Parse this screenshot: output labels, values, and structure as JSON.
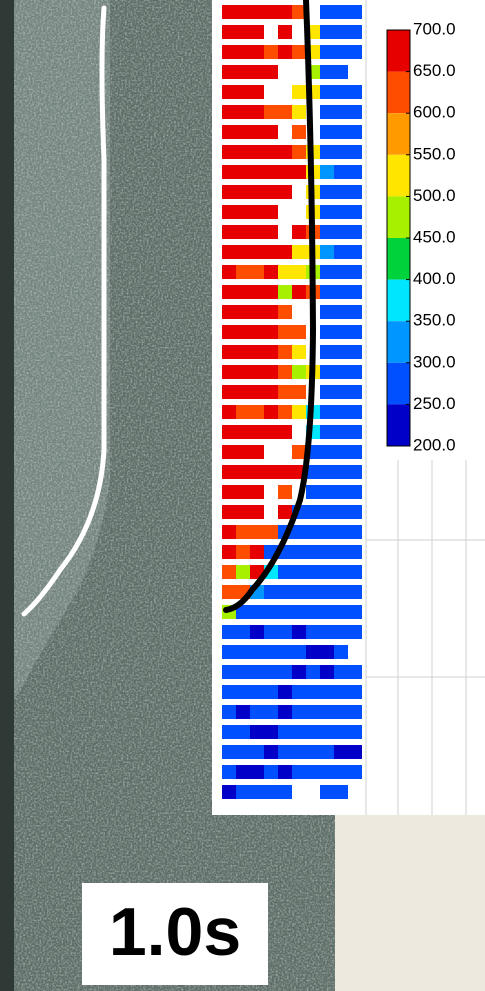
{
  "label": "1.0s",
  "colorbar": {
    "ticks": [
      {
        "value": 700,
        "label": "700.0"
      },
      {
        "value": 650,
        "label": "650.0"
      },
      {
        "value": 600,
        "label": "600.0"
      },
      {
        "value": 550,
        "label": "550.0"
      },
      {
        "value": 500,
        "label": "500.0"
      },
      {
        "value": 450,
        "label": "450.0"
      },
      {
        "value": 400,
        "label": "400.0"
      },
      {
        "value": 350,
        "label": "350.0"
      },
      {
        "value": 300,
        "label": "300.0"
      },
      {
        "value": 250,
        "label": "250.0"
      },
      {
        "value": 200,
        "label": "200.0"
      }
    ],
    "colors": [
      "#e60000",
      "#ff4d00",
      "#ff9a00",
      "#ffe600",
      "#a6f000",
      "#00d23c",
      "#00e6ff",
      "#0096ff",
      "#0050ff",
      "#0000c8"
    ]
  },
  "heatmap": {
    "rows": [
      [
        680,
        680,
        680,
        680,
        680,
        620,
        null,
        280,
        280,
        280
      ],
      [
        680,
        680,
        680,
        null,
        680,
        null,
        520,
        280,
        280,
        280
      ],
      [
        680,
        680,
        680,
        620,
        680,
        620,
        520,
        280,
        280,
        280
      ],
      [
        680,
        680,
        680,
        680,
        null,
        null,
        470,
        280,
        280,
        null
      ],
      [
        680,
        680,
        680,
        null,
        null,
        520,
        520,
        280,
        280,
        280
      ],
      [
        680,
        680,
        680,
        620,
        620,
        520,
        null,
        280,
        280,
        280
      ],
      [
        680,
        680,
        680,
        680,
        null,
        620,
        null,
        280,
        280,
        280
      ],
      [
        680,
        680,
        680,
        680,
        680,
        620,
        520,
        280,
        280,
        280
      ],
      [
        680,
        680,
        680,
        680,
        680,
        680,
        520,
        330,
        280,
        280
      ],
      [
        680,
        680,
        680,
        680,
        680,
        null,
        520,
        280,
        280,
        280
      ],
      [
        680,
        680,
        680,
        680,
        null,
        null,
        520,
        280,
        280,
        280
      ],
      [
        680,
        680,
        680,
        680,
        null,
        680,
        620,
        280,
        280,
        280
      ],
      [
        680,
        680,
        680,
        680,
        680,
        520,
        520,
        330,
        280,
        280
      ],
      [
        680,
        620,
        620,
        680,
        520,
        520,
        470,
        280,
        280,
        280
      ],
      [
        680,
        680,
        680,
        680,
        470,
        680,
        620,
        280,
        280,
        280
      ],
      [
        680,
        680,
        680,
        680,
        620,
        null,
        null,
        280,
        280,
        280
      ],
      [
        680,
        680,
        680,
        680,
        620,
        620,
        null,
        280,
        280,
        280
      ],
      [
        680,
        680,
        680,
        680,
        620,
        520,
        null,
        280,
        280,
        280
      ],
      [
        680,
        680,
        680,
        680,
        620,
        470,
        520,
        280,
        280,
        280
      ],
      [
        680,
        680,
        680,
        680,
        620,
        620,
        null,
        280,
        280,
        280
      ],
      [
        680,
        620,
        620,
        680,
        620,
        520,
        380,
        280,
        280,
        280
      ],
      [
        680,
        680,
        680,
        680,
        680,
        null,
        380,
        280,
        280,
        280
      ],
      [
        680,
        680,
        680,
        null,
        null,
        620,
        280,
        280,
        280,
        280
      ],
      [
        680,
        680,
        680,
        680,
        680,
        680,
        280,
        280,
        280,
        280
      ],
      [
        680,
        680,
        680,
        null,
        620,
        null,
        280,
        280,
        280,
        280
      ],
      [
        680,
        680,
        680,
        null,
        680,
        280,
        280,
        280,
        280,
        280
      ],
      [
        680,
        620,
        620,
        620,
        280,
        280,
        280,
        280,
        280,
        280
      ],
      [
        680,
        620,
        680,
        280,
        280,
        280,
        280,
        280,
        280,
        280
      ],
      [
        620,
        470,
        680,
        380,
        280,
        280,
        280,
        280,
        280,
        280
      ],
      [
        620,
        620,
        330,
        280,
        280,
        280,
        280,
        280,
        280,
        280
      ],
      [
        470,
        280,
        280,
        280,
        280,
        280,
        280,
        280,
        280,
        280
      ],
      [
        280,
        280,
        230,
        280,
        280,
        230,
        280,
        280,
        280,
        280
      ],
      [
        280,
        280,
        280,
        280,
        280,
        280,
        230,
        230,
        280,
        null
      ],
      [
        280,
        280,
        280,
        280,
        280,
        230,
        280,
        230,
        280,
        280
      ],
      [
        280,
        280,
        280,
        280,
        230,
        280,
        280,
        280,
        280,
        280
      ],
      [
        280,
        230,
        280,
        280,
        230,
        280,
        280,
        280,
        280,
        280
      ],
      [
        280,
        280,
        230,
        230,
        280,
        280,
        280,
        280,
        280,
        280
      ],
      [
        280,
        280,
        280,
        230,
        280,
        280,
        280,
        280,
        230,
        230
      ],
      [
        280,
        230,
        230,
        280,
        230,
        280,
        280,
        280,
        280,
        280
      ],
      [
        230,
        280,
        280,
        280,
        280,
        null,
        null,
        280,
        280,
        null
      ]
    ]
  }
}
